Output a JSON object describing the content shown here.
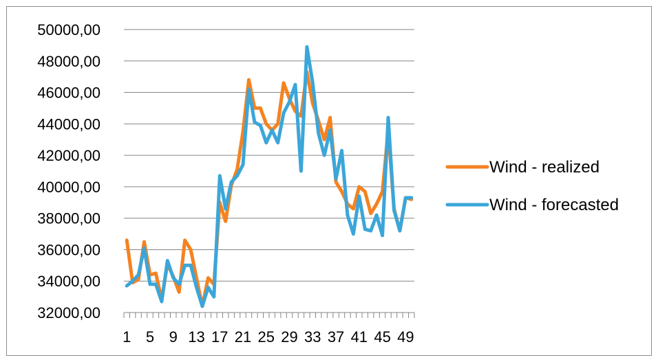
{
  "chart_data": {
    "type": "line",
    "title": "",
    "xlabel": "",
    "ylabel": "",
    "ylim": [
      32000,
      50000
    ],
    "yticks": [
      32000,
      34000,
      36000,
      38000,
      40000,
      42000,
      44000,
      46000,
      48000,
      50000
    ],
    "ytick_labels": [
      "32000,00",
      "34000,00",
      "36000,00",
      "38000,00",
      "40000,00",
      "42000,00",
      "44000,00",
      "46000,00",
      "48000,00",
      "50000,00"
    ],
    "x": [
      1,
      2,
      3,
      4,
      5,
      6,
      7,
      8,
      9,
      10,
      11,
      12,
      13,
      14,
      15,
      16,
      17,
      18,
      19,
      20,
      21,
      22,
      23,
      24,
      25,
      26,
      27,
      28,
      29,
      30,
      31,
      32,
      33,
      34,
      35,
      36,
      37,
      38,
      39,
      40,
      41,
      42,
      43,
      44,
      45,
      46,
      47,
      48,
      49,
      50
    ],
    "xtick_labels": [
      "1",
      "5",
      "9",
      "13",
      "17",
      "21",
      "25",
      "29",
      "33",
      "37",
      "41",
      "45",
      "49"
    ],
    "xtick_positions": [
      1,
      5,
      9,
      13,
      17,
      21,
      25,
      29,
      33,
      37,
      41,
      45,
      49
    ],
    "grid": "horizontal",
    "legend_position": "right",
    "series": [
      {
        "name": "Wind - realized",
        "color": "#f58220",
        "values": [
          36600,
          33900,
          34100,
          36500,
          34400,
          34500,
          32800,
          35100,
          34300,
          33300,
          36600,
          36000,
          34200,
          32400,
          34200,
          33800,
          39000,
          37800,
          40100,
          41100,
          43500,
          46800,
          45000,
          45000,
          44000,
          43600,
          44000,
          46600,
          45600,
          44800,
          44500,
          47300,
          45300,
          44200,
          43000,
          44400,
          40300,
          39700,
          38900,
          38600,
          40000,
          39700,
          38300,
          38900,
          39700,
          43600,
          38600,
          37200,
          39300,
          39200
        ]
      },
      {
        "name": "Wind - forecasted",
        "color": "#3ba6d9",
        "values": [
          33700,
          34000,
          34400,
          36100,
          33800,
          33800,
          32700,
          35300,
          34200,
          33800,
          35000,
          35000,
          33600,
          32400,
          33600,
          33000,
          40700,
          38600,
          40300,
          40700,
          41400,
          46200,
          44100,
          43900,
          42800,
          43600,
          42800,
          44700,
          45400,
          46500,
          41000,
          48900,
          46600,
          43400,
          42000,
          43600,
          40500,
          42300,
          38200,
          37000,
          39400,
          37300,
          37200,
          38200,
          36900,
          44400,
          38500,
          37200,
          39300,
          39300
        ]
      }
    ]
  }
}
